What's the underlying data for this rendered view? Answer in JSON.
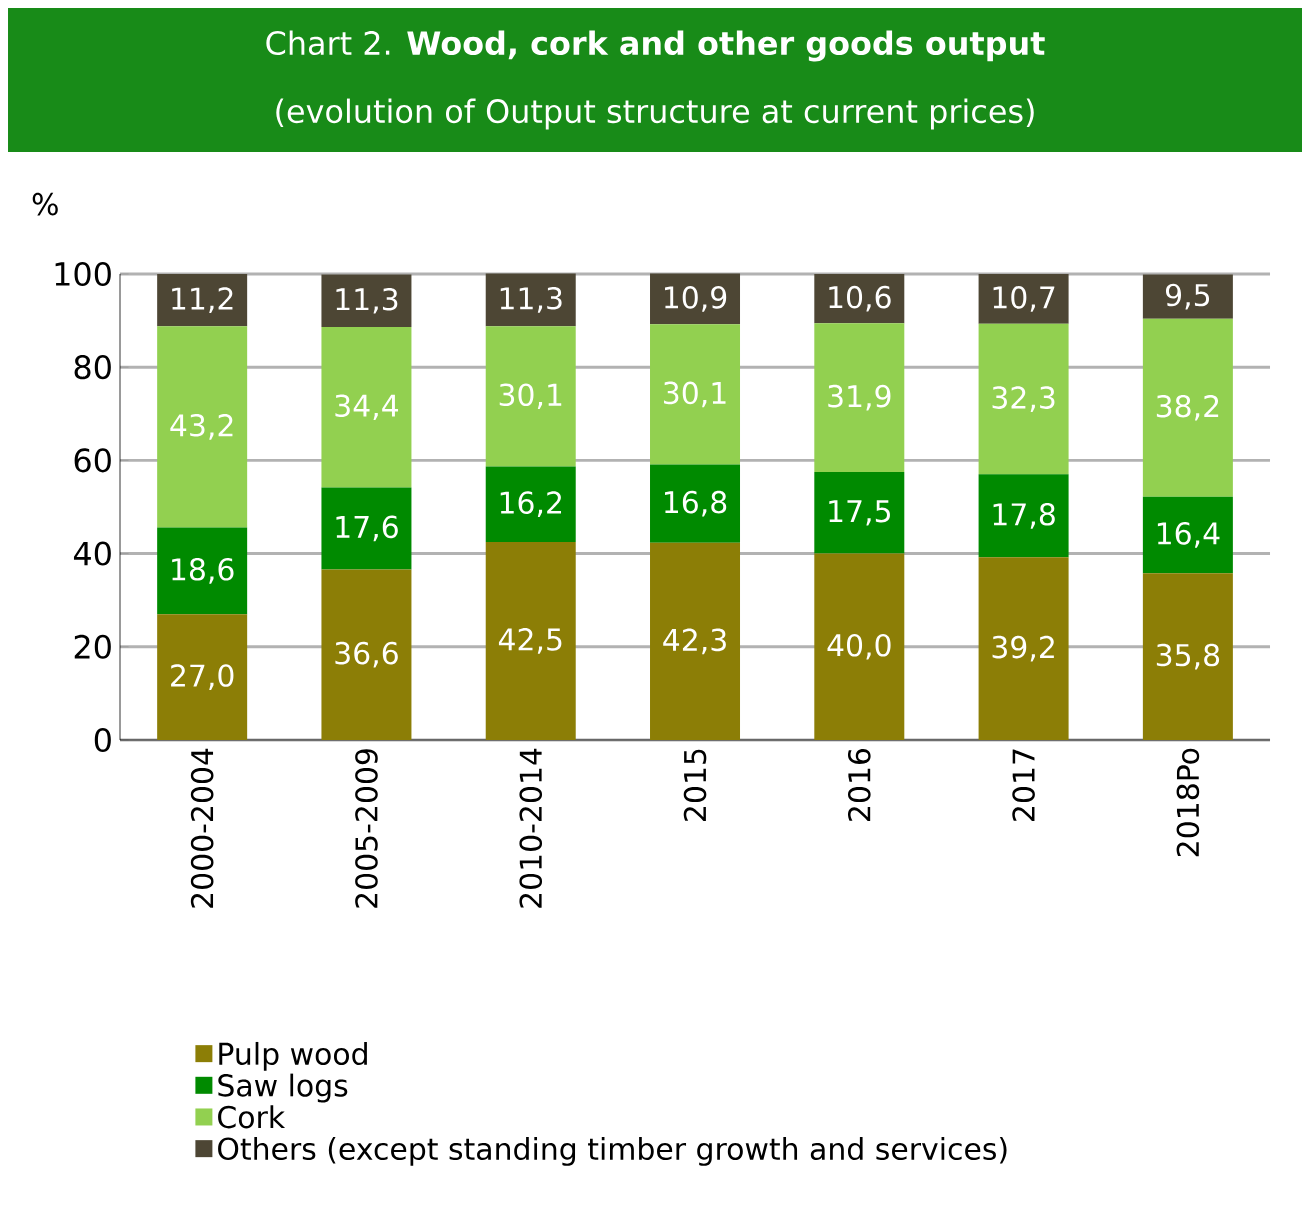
{
  "chart_data": {
    "type": "bar",
    "stacked": true,
    "title": "Chart 2. **Wood, cork and other goods output**",
    "subtitle": "(evolution of Output structure at current prices)",
    "ylabel": "%",
    "categories": [
      "2000-2004",
      "2005-2009",
      "2010-2014",
      "2015",
      "2016",
      "2017",
      "2018Po"
    ],
    "series": [
      {
        "name": "Pulp wood",
        "color": "#8c7e06",
        "values": [
          27.0,
          36.6,
          42.5,
          42.3,
          40.0,
          39.2,
          35.8
        ],
        "value_labels": [
          "27,0",
          "36,6",
          "42,5",
          "42,3",
          "40,0",
          "39,2",
          "35,8"
        ]
      },
      {
        "name": "Saw logs",
        "color": "#008a00",
        "values": [
          18.6,
          17.6,
          16.2,
          16.8,
          17.5,
          17.8,
          16.4
        ],
        "value_labels": [
          "18,6",
          "17,6",
          "16,2",
          "16,8",
          "17,5",
          "17,8",
          "16,4"
        ]
      },
      {
        "name": "Cork",
        "color": "#92d050",
        "values": [
          43.2,
          34.4,
          30.1,
          30.1,
          31.9,
          32.3,
          38.2
        ],
        "value_labels": [
          "43,2",
          "34,4",
          "30,1",
          "30,1",
          "31,9",
          "32,3",
          "38,2"
        ]
      },
      {
        "name": "Others (except standing timber growth and services)",
        "color": "#4d4634",
        "values": [
          11.2,
          11.3,
          11.3,
          10.9,
          10.6,
          10.7,
          9.5
        ],
        "value_labels": [
          "11,2",
          "11,3",
          "11,3",
          "10,9",
          "10,6",
          "10,7",
          "9,5"
        ]
      }
    ],
    "ylim": [
      0,
      100
    ],
    "yticks": [
      0,
      20,
      40,
      60,
      80,
      100
    ],
    "grid": "y",
    "legend": "bottom"
  }
}
